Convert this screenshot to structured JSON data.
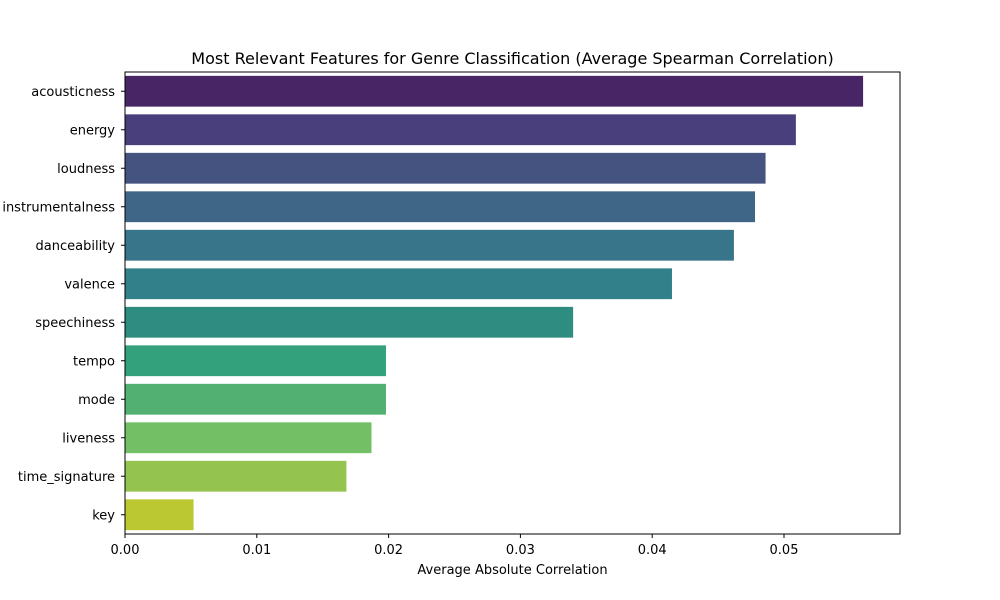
{
  "chart_data": {
    "type": "bar",
    "orientation": "horizontal",
    "title": "Most Relevant Features for Genre Classification (Average Spearman Correlation)",
    "xlabel": "Average Absolute Correlation",
    "ylabel": "",
    "xlim": [
      0,
      0.0588
    ],
    "xticks": [
      "0.00",
      "0.01",
      "0.02",
      "0.03",
      "0.04",
      "0.05"
    ],
    "grid": false,
    "legend": "none",
    "categories": [
      "acousticness",
      "energy",
      "loudness",
      "instrumentalness",
      "danceability",
      "valence",
      "speechiness",
      "tempo",
      "mode",
      "liveness",
      "time_signature",
      "key"
    ],
    "values": [
      0.056,
      0.0509,
      0.0486,
      0.0478,
      0.0462,
      0.0415,
      0.034,
      0.0198,
      0.0198,
      0.0187,
      0.0168,
      0.0052
    ],
    "colors": [
      "#482565",
      "#4A3F7D",
      "#44537F",
      "#3F6587",
      "#38758A",
      "#32818A",
      "#2E8D80",
      "#33A17C",
      "#52B172",
      "#72BF65",
      "#95C350",
      "#BBC831"
    ]
  }
}
